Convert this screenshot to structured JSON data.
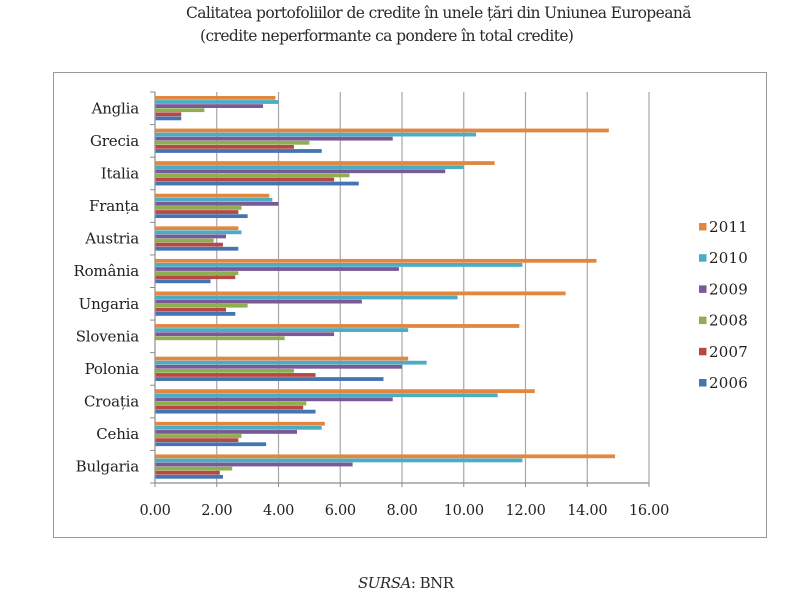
{
  "header": {
    "title": "Calitatea portofoliilor de credite în unele țări din Uniunea Europeană",
    "subtitle": "(credite neperformante ca pondere în total credite)"
  },
  "footer": {
    "source_label": "SURSA",
    "source_sep": ":",
    "source_value": " BNR"
  },
  "chart_data": {
    "type": "bar",
    "orientation": "horizontal",
    "title": "Calitatea portofoliilor de credite în unele țări din Uniunea Europeană",
    "subtitle": "(credite neperformante ca pondere în total credite)",
    "xlabel": "",
    "ylabel": "",
    "xlim": [
      0,
      16
    ],
    "x_ticks": [
      "0.00",
      "2.00",
      "4.00",
      "6.00",
      "8.00",
      "10.00",
      "12.00",
      "14.00",
      "16.00"
    ],
    "grid": true,
    "legend_position": "right",
    "categories": [
      "Anglia",
      "Grecia",
      "Italia",
      "Franța",
      "Austria",
      "România",
      "Ungaria",
      "Slovenia",
      "Polonia",
      "Croația",
      "Cehia",
      "Bulgaria"
    ],
    "series": [
      {
        "name": "2011",
        "color": "#E2873F",
        "values": [
          3.9,
          14.7,
          11.0,
          3.7,
          2.7,
          14.3,
          13.3,
          11.8,
          8.2,
          12.3,
          5.5,
          14.9
        ]
      },
      {
        "name": "2010",
        "color": "#4AACC5",
        "values": [
          4.0,
          10.4,
          10.0,
          3.8,
          2.8,
          11.9,
          9.8,
          8.2,
          8.8,
          11.1,
          5.4,
          11.9
        ]
      },
      {
        "name": "2009",
        "color": "#7A5A96",
        "values": [
          3.5,
          7.7,
          9.4,
          4.0,
          2.3,
          7.9,
          6.7,
          5.8,
          8.0,
          7.7,
          4.6,
          6.4
        ]
      },
      {
        "name": "2008",
        "color": "#8DAF4E",
        "values": [
          1.6,
          5.0,
          6.3,
          2.8,
          1.9,
          2.7,
          3.0,
          4.2,
          4.5,
          4.9,
          2.8,
          2.5
        ]
      },
      {
        "name": "2007",
        "color": "#B84846",
        "values": [
          0.85,
          4.5,
          5.8,
          2.7,
          2.2,
          2.6,
          2.3,
          null,
          5.2,
          4.8,
          2.7,
          2.1
        ]
      },
      {
        "name": "2006",
        "color": "#4575B0",
        "values": [
          0.85,
          5.4,
          6.6,
          3.0,
          2.7,
          1.8,
          2.6,
          null,
          7.4,
          5.2,
          3.6,
          2.2
        ]
      }
    ]
  }
}
